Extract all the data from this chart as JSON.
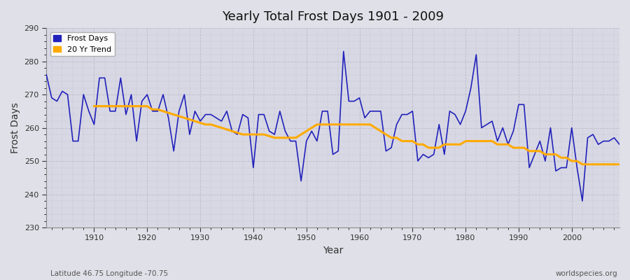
{
  "title": "Yearly Total Frost Days 1901 - 2009",
  "xlabel": "Year",
  "ylabel": "Frost Days",
  "xlim": [
    1901,
    2009
  ],
  "ylim": [
    230,
    290
  ],
  "yticks": [
    230,
    240,
    250,
    260,
    270,
    280,
    290
  ],
  "background_color": "#e0e0e8",
  "plot_bg_color": "#d8d8e4",
  "grid_major_color": "#c8c8d4",
  "grid_minor_color": "#c8c8d4",
  "line_color": "#2222bb",
  "trend_color": "#ffaa00",
  "subtitle_left": "Latitude 46.75 Longitude -70.75",
  "subtitle_right": "worldspecies.org",
  "years": [
    1901,
    1902,
    1903,
    1904,
    1905,
    1906,
    1907,
    1908,
    1909,
    1910,
    1911,
    1912,
    1913,
    1914,
    1915,
    1916,
    1917,
    1918,
    1919,
    1920,
    1921,
    1922,
    1923,
    1924,
    1925,
    1926,
    1927,
    1928,
    1929,
    1930,
    1931,
    1932,
    1933,
    1934,
    1935,
    1936,
    1937,
    1938,
    1939,
    1940,
    1941,
    1942,
    1943,
    1944,
    1945,
    1946,
    1947,
    1948,
    1949,
    1950,
    1951,
    1952,
    1953,
    1954,
    1955,
    1956,
    1957,
    1958,
    1959,
    1960,
    1961,
    1962,
    1963,
    1964,
    1965,
    1966,
    1967,
    1968,
    1969,
    1970,
    1971,
    1972,
    1973,
    1974,
    1975,
    1976,
    1977,
    1978,
    1979,
    1980,
    1981,
    1982,
    1983,
    1984,
    1985,
    1986,
    1987,
    1988,
    1989,
    1990,
    1991,
    1992,
    1993,
    1994,
    1995,
    1996,
    1997,
    1998,
    1999,
    2000,
    2001,
    2002,
    2003,
    2004,
    2005,
    2006,
    2007,
    2008,
    2009
  ],
  "frost_days": [
    276,
    269,
    268,
    271,
    270,
    256,
    256,
    270,
    265,
    261,
    275,
    275,
    265,
    265,
    275,
    264,
    270,
    256,
    268,
    270,
    265,
    265,
    270,
    263,
    253,
    265,
    270,
    258,
    265,
    262,
    264,
    264,
    263,
    262,
    265,
    259,
    258,
    264,
    263,
    248,
    264,
    264,
    259,
    258,
    265,
    259,
    256,
    256,
    244,
    256,
    259,
    256,
    265,
    265,
    252,
    253,
    283,
    268,
    268,
    269,
    263,
    265,
    265,
    265,
    253,
    254,
    261,
    264,
    264,
    265,
    250,
    252,
    251,
    252,
    261,
    252,
    265,
    264,
    261,
    265,
    272,
    282,
    260,
    261,
    262,
    256,
    260,
    255,
    259,
    267,
    267,
    248,
    252,
    256,
    250,
    260,
    247,
    248,
    248,
    260,
    248,
    238,
    257,
    258,
    255,
    256,
    256,
    257,
    255
  ],
  "trend_values": [
    null,
    null,
    null,
    null,
    null,
    null,
    null,
    null,
    null,
    266.5,
    266.5,
    266.5,
    266.5,
    266.5,
    266.5,
    266.5,
    266.5,
    266.5,
    266.5,
    266.5,
    265.5,
    265.5,
    265,
    264.5,
    264,
    263.5,
    263,
    262.5,
    262,
    261.5,
    261,
    261,
    260.5,
    260,
    259.5,
    259,
    258.5,
    258,
    258,
    258,
    258,
    258,
    257.5,
    257,
    257,
    257,
    257,
    257,
    258,
    259,
    260,
    261,
    261,
    261,
    261,
    261,
    261,
    261,
    261,
    261,
    261,
    261,
    260,
    259,
    258,
    257,
    257,
    256,
    256,
    256,
    255,
    255,
    254,
    254,
    254,
    255,
    255,
    255,
    255,
    256,
    256,
    256,
    256,
    256,
    256,
    255,
    255,
    255,
    254,
    254,
    254,
    253,
    253,
    253,
    252,
    252,
    252,
    251,
    251,
    250,
    250,
    249,
    249,
    249,
    249,
    249,
    249,
    249,
    249
  ]
}
